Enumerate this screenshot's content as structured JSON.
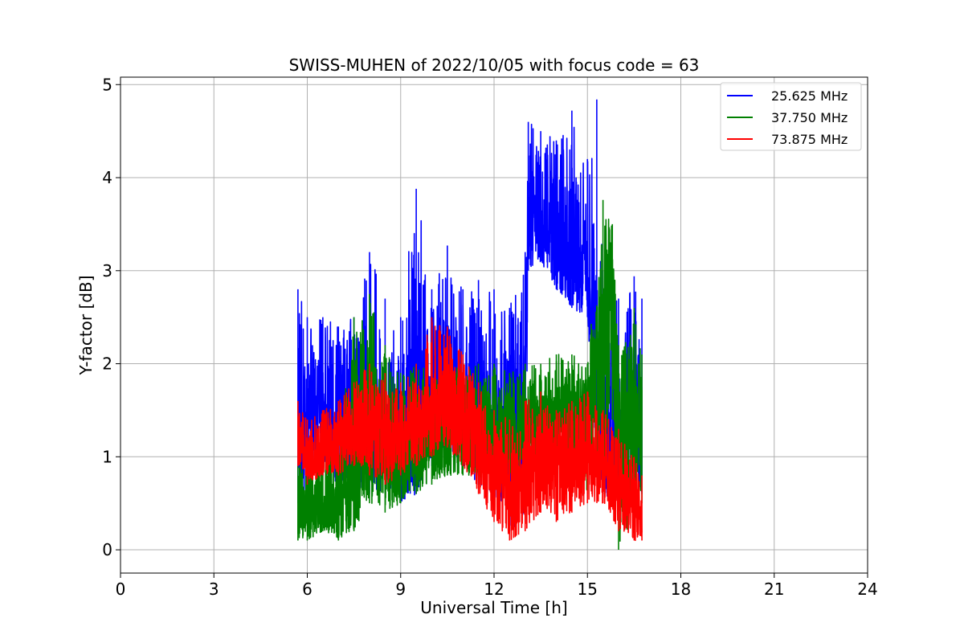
{
  "chart_data": {
    "type": "line",
    "title": "SWISS-MUHEN of 2022/10/05 with focus code = 63",
    "xlabel": "Universal Time [h]",
    "ylabel": "Y-factor [dB]",
    "xlim": [
      0,
      24
    ],
    "ylim": [
      -0.25,
      5.08
    ],
    "xticks": [
      0,
      3,
      6,
      9,
      12,
      15,
      18,
      21,
      24
    ],
    "yticks": [
      0,
      1,
      2,
      3,
      4,
      5
    ],
    "grid": true,
    "legend_position": "top-right",
    "series": [
      {
        "name": "25.625 MHz",
        "color": "#0000ff",
        "x": [
          5.7,
          6.0,
          6.5,
          7.0,
          7.5,
          8.0,
          8.5,
          9.0,
          9.5,
          10.0,
          10.5,
          11.0,
          11.5,
          12.0,
          12.5,
          13.0,
          13.1,
          13.5,
          14.0,
          14.5,
          15.0,
          15.3,
          15.5,
          16.0,
          16.5,
          16.75
        ],
        "y": [
          1.2,
          1.5,
          1.6,
          1.4,
          1.5,
          1.4,
          1.6,
          1.3,
          1.4,
          1.5,
          1.6,
          1.5,
          1.4,
          1.3,
          1.5,
          1.7,
          3.7,
          3.5,
          3.3,
          3.1,
          3.0,
          1.6,
          1.0,
          0.9,
          1.6,
          1.4
        ],
        "y_low": [
          0.5,
          0.7,
          0.8,
          0.7,
          0.7,
          0.6,
          0.6,
          0.5,
          0.6,
          0.9,
          1.0,
          0.9,
          0.7,
          0.6,
          0.2,
          0.3,
          3.0,
          3.1,
          2.8,
          2.6,
          2.5,
          1.0,
          0.6,
          0.5,
          0.7,
          0.6
        ],
        "y_high": [
          2.8,
          2.5,
          2.5,
          2.4,
          2.5,
          3.2,
          2.7,
          2.5,
          3.88,
          2.8,
          3.27,
          2.8,
          2.9,
          2.8,
          2.6,
          3.2,
          4.6,
          4.5,
          4.4,
          4.72,
          4.2,
          4.84,
          3.0,
          2.7,
          2.94,
          2.7
        ]
      },
      {
        "name": "37.750 MHz",
        "color": "#008000",
        "x": [
          5.7,
          6.0,
          6.5,
          7.0,
          7.5,
          8.0,
          8.5,
          9.0,
          9.5,
          10.0,
          10.5,
          11.0,
          11.5,
          12.0,
          12.5,
          13.0,
          13.5,
          14.0,
          14.5,
          15.0,
          15.5,
          15.8,
          16.0,
          16.5,
          16.75
        ],
        "y": [
          0.5,
          0.4,
          0.5,
          0.6,
          0.8,
          1.6,
          1.2,
          1.0,
          1.1,
          1.2,
          1.3,
          1.3,
          1.4,
          1.3,
          1.3,
          1.4,
          1.5,
          1.5,
          1.6,
          1.5,
          2.6,
          3.0,
          1.3,
          1.8,
          1.1
        ],
        "y_low": [
          0.1,
          0.1,
          0.2,
          0.1,
          0.2,
          0.5,
          0.4,
          0.5,
          0.6,
          0.7,
          0.8,
          0.8,
          0.8,
          0.7,
          0.8,
          0.9,
          1.0,
          1.0,
          1.1,
          0.6,
          0.6,
          1.4,
          0.0,
          0.4,
          0.5
        ],
        "y_high": [
          0.9,
          1.0,
          1.2,
          1.3,
          2.5,
          2.75,
          2.2,
          1.9,
          2.0,
          1.9,
          2.0,
          2.0,
          2.0,
          2.0,
          1.9,
          2.0,
          2.0,
          2.1,
          2.1,
          2.0,
          3.76,
          3.5,
          2.2,
          2.6,
          2.1
        ]
      },
      {
        "name": "73.875 MHz",
        "color": "#ff0000",
        "x": [
          5.7,
          6.0,
          6.5,
          7.0,
          7.5,
          8.0,
          8.5,
          9.0,
          9.5,
          10.0,
          10.5,
          11.0,
          11.5,
          12.0,
          12.5,
          13.0,
          13.5,
          14.0,
          14.5,
          15.0,
          15.5,
          16.0,
          16.5,
          16.75
        ],
        "y": [
          1.3,
          1.0,
          1.1,
          1.2,
          1.3,
          1.4,
          1.3,
          1.2,
          1.4,
          1.6,
          1.7,
          1.5,
          1.2,
          0.9,
          0.7,
          0.8,
          1.0,
          0.9,
          1.0,
          1.1,
          1.0,
          0.7,
          0.6,
          0.4
        ],
        "y_low": [
          0.9,
          0.7,
          0.8,
          0.8,
          0.9,
          0.8,
          0.7,
          0.8,
          0.9,
          1.0,
          1.1,
          0.9,
          0.6,
          0.3,
          0.1,
          0.2,
          0.4,
          0.3,
          0.4,
          0.5,
          0.5,
          0.2,
          0.1,
          0.1
        ],
        "y_high": [
          1.6,
          1.4,
          1.5,
          1.6,
          1.8,
          2.0,
          1.9,
          1.8,
          2.0,
          2.5,
          2.4,
          2.1,
          1.8,
          1.5,
          1.4,
          1.6,
          1.7,
          1.5,
          1.6,
          1.7,
          1.5,
          1.3,
          1.0,
          0.8
        ]
      }
    ]
  }
}
